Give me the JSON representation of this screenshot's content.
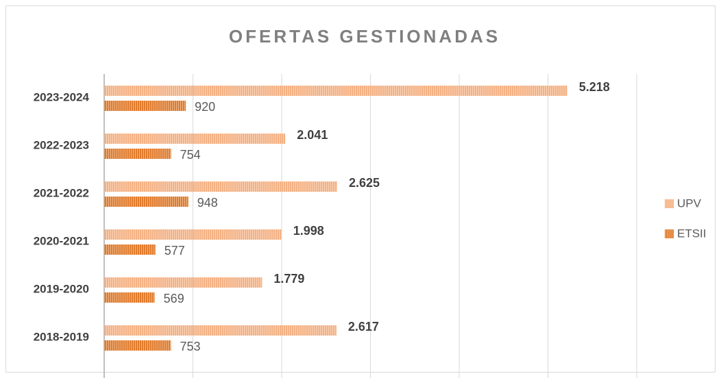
{
  "chart_data": {
    "type": "bar",
    "orientation": "horizontal",
    "title": "OFERTAS GESTIONADAS",
    "categories": [
      "2023-2024",
      "2022-2023",
      "2021-2022",
      "2020-2021",
      "2019-2020",
      "2018-2019"
    ],
    "series": [
      {
        "name": "UPV",
        "color": "#f4b183",
        "values": [
          5218,
          2041,
          2625,
          1998,
          1779,
          2617
        ],
        "value_labels": [
          "5.218",
          "2.041",
          "2.625",
          "1.998",
          "1.779",
          "2.617"
        ]
      },
      {
        "name": "ETSII",
        "color": "#e07b2c",
        "values": [
          920,
          754,
          948,
          577,
          569,
          753
        ]
      }
    ],
    "xlim": [
      0,
      6000
    ],
    "xticks": [
      0,
      1000,
      2000,
      3000,
      4000,
      5000,
      6000
    ],
    "grid": true,
    "legend": "right"
  }
}
